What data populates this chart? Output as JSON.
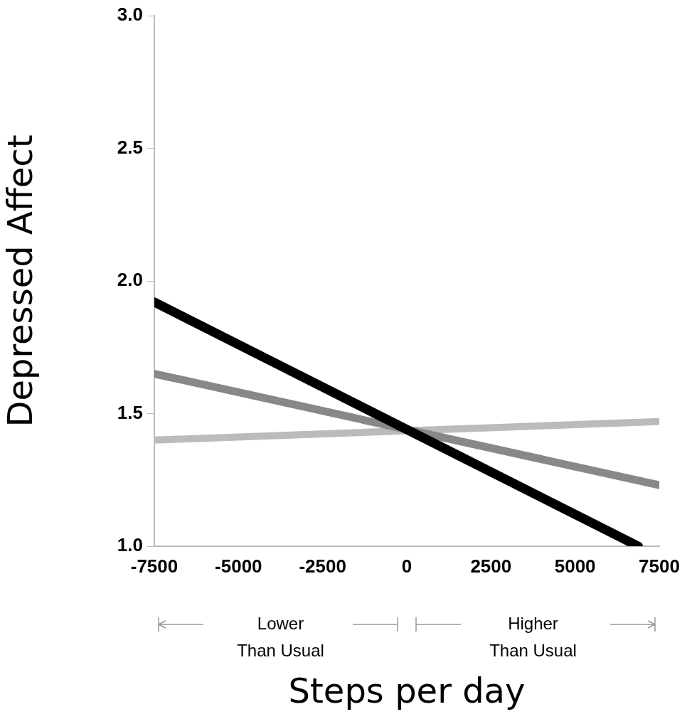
{
  "chart_data": {
    "type": "line",
    "xlabel": "Steps per day",
    "ylabel": "Depressed Affect",
    "xlim": [
      -7500,
      7500
    ],
    "xticks": [
      -7500,
      -5000,
      -2500,
      0,
      2500,
      5000,
      7500
    ],
    "ylim": [
      1.0,
      3.0
    ],
    "yticks": [
      {
        "value": 1.0,
        "label": "1.0"
      },
      1.5,
      {
        "value": 2.0,
        "label": "2.0"
      },
      2.5,
      {
        "value": 3.0,
        "label": "3.0"
      }
    ],
    "grid": false,
    "legend": false,
    "marker": "none",
    "line_style": "solid",
    "series": [
      {
        "color": "#000000",
        "x": [
          -7500,
          6875
        ],
        "values": [
          1.92,
          1.0
        ]
      },
      {
        "color": "#888888",
        "x": [
          -7500,
          7500
        ],
        "values": [
          1.65,
          1.23
        ]
      },
      {
        "color": "#bbbbbb",
        "x": [
          -7500,
          7500
        ],
        "values": [
          1.4,
          1.47
        ]
      }
    ],
    "annotations": [
      "Lower\nThan Usual",
      "Higher\nThan Usual"
    ]
  }
}
